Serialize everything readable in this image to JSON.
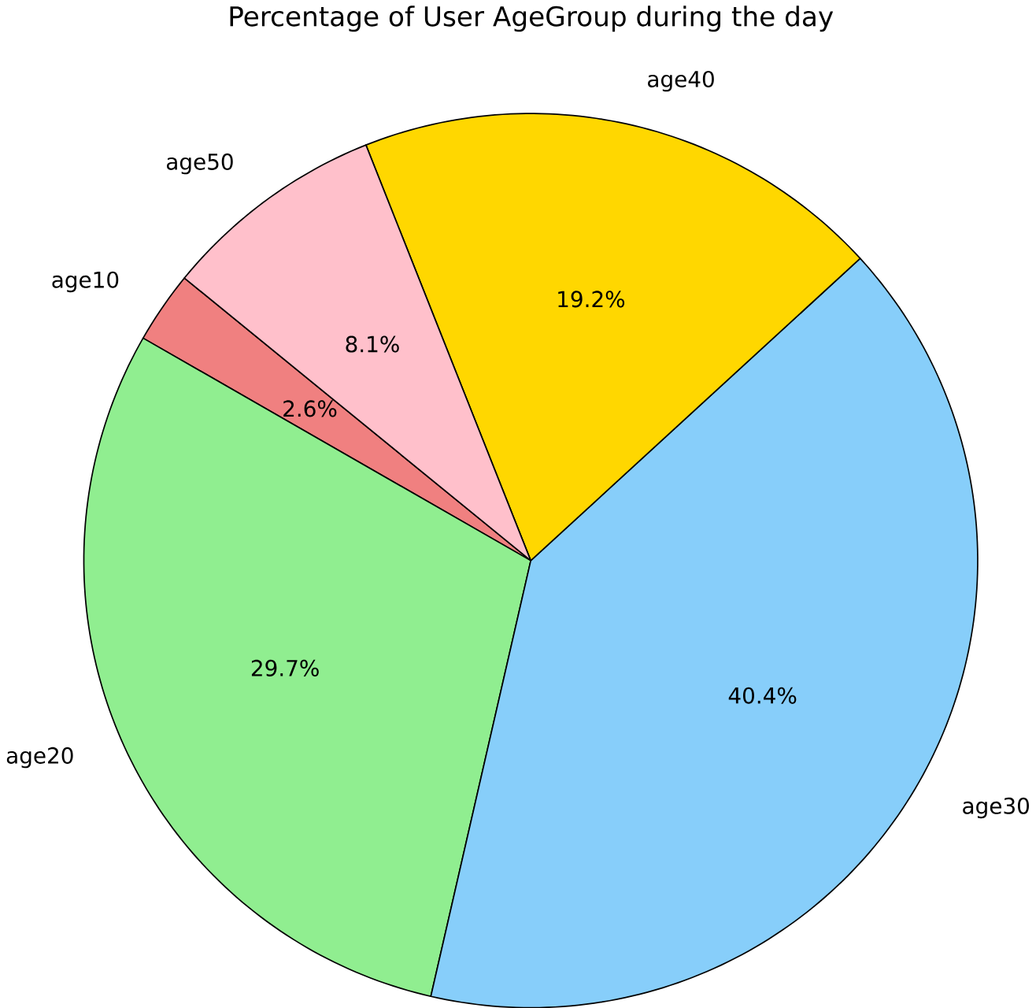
{
  "chart_data": {
    "type": "pie",
    "title": "Percentage of User AgeGroup during the day",
    "categories": [
      "age10",
      "age20",
      "age30",
      "age40",
      "age50"
    ],
    "values": [
      2.6,
      29.7,
      40.4,
      19.2,
      8.1
    ],
    "value_labels": [
      "2.6%",
      "29.7%",
      "40.4%",
      "19.2%",
      "8.1%"
    ],
    "colors": [
      "#f08080",
      "#90ee90",
      "#87cefa",
      "#ffd700",
      "#ffc0cb"
    ]
  }
}
